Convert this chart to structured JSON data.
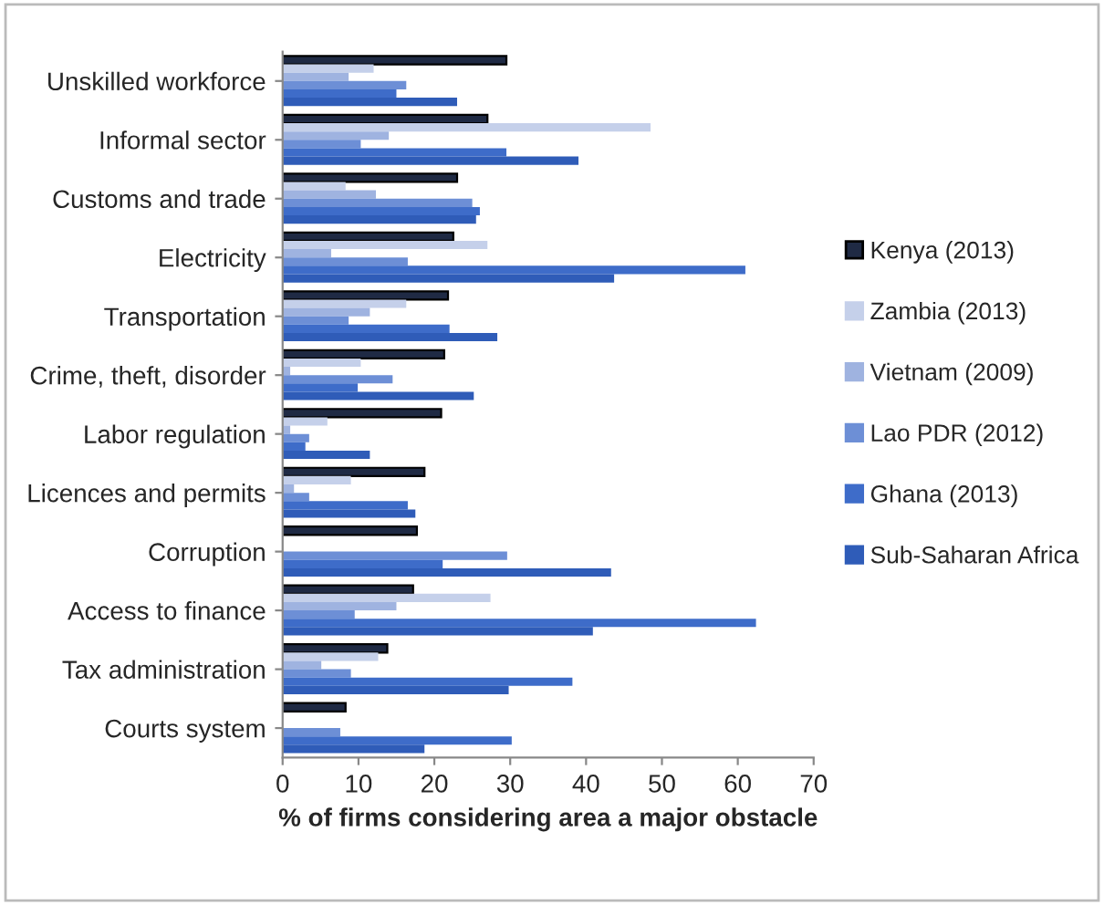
{
  "chart_data": {
    "type": "bar",
    "orientation": "horizontal",
    "xlabel": "% of firms considering area a major obstacle",
    "categories": [
      "Unskilled workforce",
      "Informal sector",
      "Customs and trade",
      "Electricity",
      "Transportation",
      "Crime, theft, disorder",
      "Labor regulation",
      "Licences and permits",
      "Corruption",
      "Access to finance",
      "Tax administration",
      "Courts system"
    ],
    "series": [
      {
        "name": "Kenya (2013)",
        "color": "#1f2a44",
        "values": [
          29.5,
          27,
          23,
          22.5,
          21.8,
          21.3,
          20.9,
          18.7,
          17.7,
          17.2,
          13.8,
          8.3
        ]
      },
      {
        "name": "Zambia (2013)",
        "color": "#c5d0ea",
        "values": [
          12,
          48.5,
          8.3,
          27,
          16.3,
          10.3,
          5.9,
          9,
          null,
          27.4,
          12.6,
          null
        ]
      },
      {
        "name": "Vietnam (2009)",
        "color": "#9fb3e0",
        "values": [
          8.7,
          14,
          12.3,
          6.4,
          11.5,
          1,
          1,
          1.5,
          null,
          15,
          5.1,
          null
        ]
      },
      {
        "name": "Lao PDR (2012)",
        "color": "#6d8fd6",
        "values": [
          16.3,
          10.3,
          25,
          16.5,
          8.7,
          14.5,
          3.5,
          3.5,
          29.6,
          9.5,
          9,
          7.6
        ]
      },
      {
        "name": "Ghana (2013)",
        "color": "#3e6cc9",
        "values": [
          15,
          29.5,
          26,
          61,
          22,
          9.9,
          3,
          16.5,
          21.1,
          62.4,
          38.2,
          30.2
        ]
      },
      {
        "name": "Sub-Saharan Africa",
        "color": "#2f5cb8",
        "values": [
          23,
          39,
          25.5,
          43.7,
          28.3,
          25.2,
          11.5,
          17.5,
          43.3,
          40.9,
          29.8,
          18.7
        ]
      }
    ],
    "xlim": [
      0,
      70
    ],
    "xticks": [
      0,
      10,
      20,
      30,
      40,
      50,
      60,
      70
    ],
    "grid": false,
    "legend": "right"
  }
}
